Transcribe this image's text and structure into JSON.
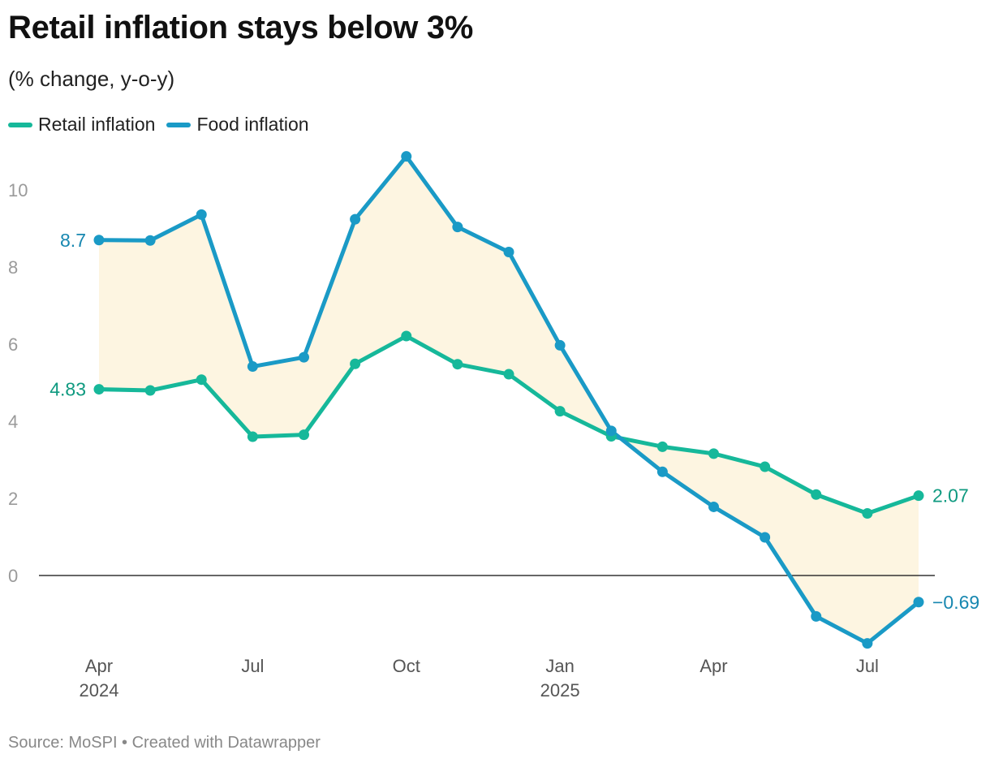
{
  "header": {
    "title": "Retail inflation stays below 3%",
    "subtitle": "(% change, y-o-y)"
  },
  "footer": {
    "source_text": "Source: MoSPI • Created with Datawrapper"
  },
  "colors": {
    "retail": "#16b89a",
    "food": "#1a9ac6",
    "fill": "#fdf5e1",
    "zero_line": "#333333",
    "axis_text": "#9a9a9a"
  },
  "chart_data": {
    "type": "line",
    "title": "Retail inflation stays below 3%",
    "subtitle": "(% change, y-o-y)",
    "xlabel": "",
    "ylabel": "",
    "ylim": [
      -1.8,
      10.8
    ],
    "y_ticks": [
      "0",
      "2",
      "4",
      "6",
      "8",
      "10"
    ],
    "x": [
      "2024-04",
      "2024-05",
      "2024-06",
      "2024-07",
      "2024-08",
      "2024-09",
      "2024-10",
      "2024-11",
      "2024-12",
      "2025-01",
      "2025-02",
      "2025-03",
      "2025-04",
      "2025-05",
      "2025-06",
      "2025-07",
      "2025-08"
    ],
    "x_ticks": [
      {
        "x": "2024-04",
        "label": "Apr",
        "year": "2024"
      },
      {
        "x": "2024-07",
        "label": "Jul",
        "year": ""
      },
      {
        "x": "2024-10",
        "label": "Oct",
        "year": ""
      },
      {
        "x": "2025-01",
        "label": "Jan",
        "year": "2025"
      },
      {
        "x": "2025-04",
        "label": "Apr",
        "year": ""
      },
      {
        "x": "2025-07",
        "label": "Jul",
        "year": ""
      }
    ],
    "series": [
      {
        "name": "Retail inflation",
        "color": "#16b89a",
        "values": [
          4.83,
          4.8,
          5.08,
          3.6,
          3.65,
          5.49,
          6.21,
          5.48,
          5.22,
          4.26,
          3.61,
          3.34,
          3.16,
          2.82,
          2.1,
          1.61,
          2.07
        ],
        "label_first": "4.83",
        "label_last": "2.07"
      },
      {
        "name": "Food inflation",
        "color": "#1a9ac6",
        "values": [
          8.7,
          8.69,
          9.36,
          5.42,
          5.66,
          9.24,
          10.87,
          9.04,
          8.39,
          5.97,
          3.75,
          2.69,
          1.78,
          0.99,
          -1.06,
          -1.76,
          -0.69
        ],
        "label_first": "8.7",
        "label_last": "−0.69"
      }
    ],
    "area_between_series": true,
    "grid": false,
    "legend_position": "top-left"
  }
}
